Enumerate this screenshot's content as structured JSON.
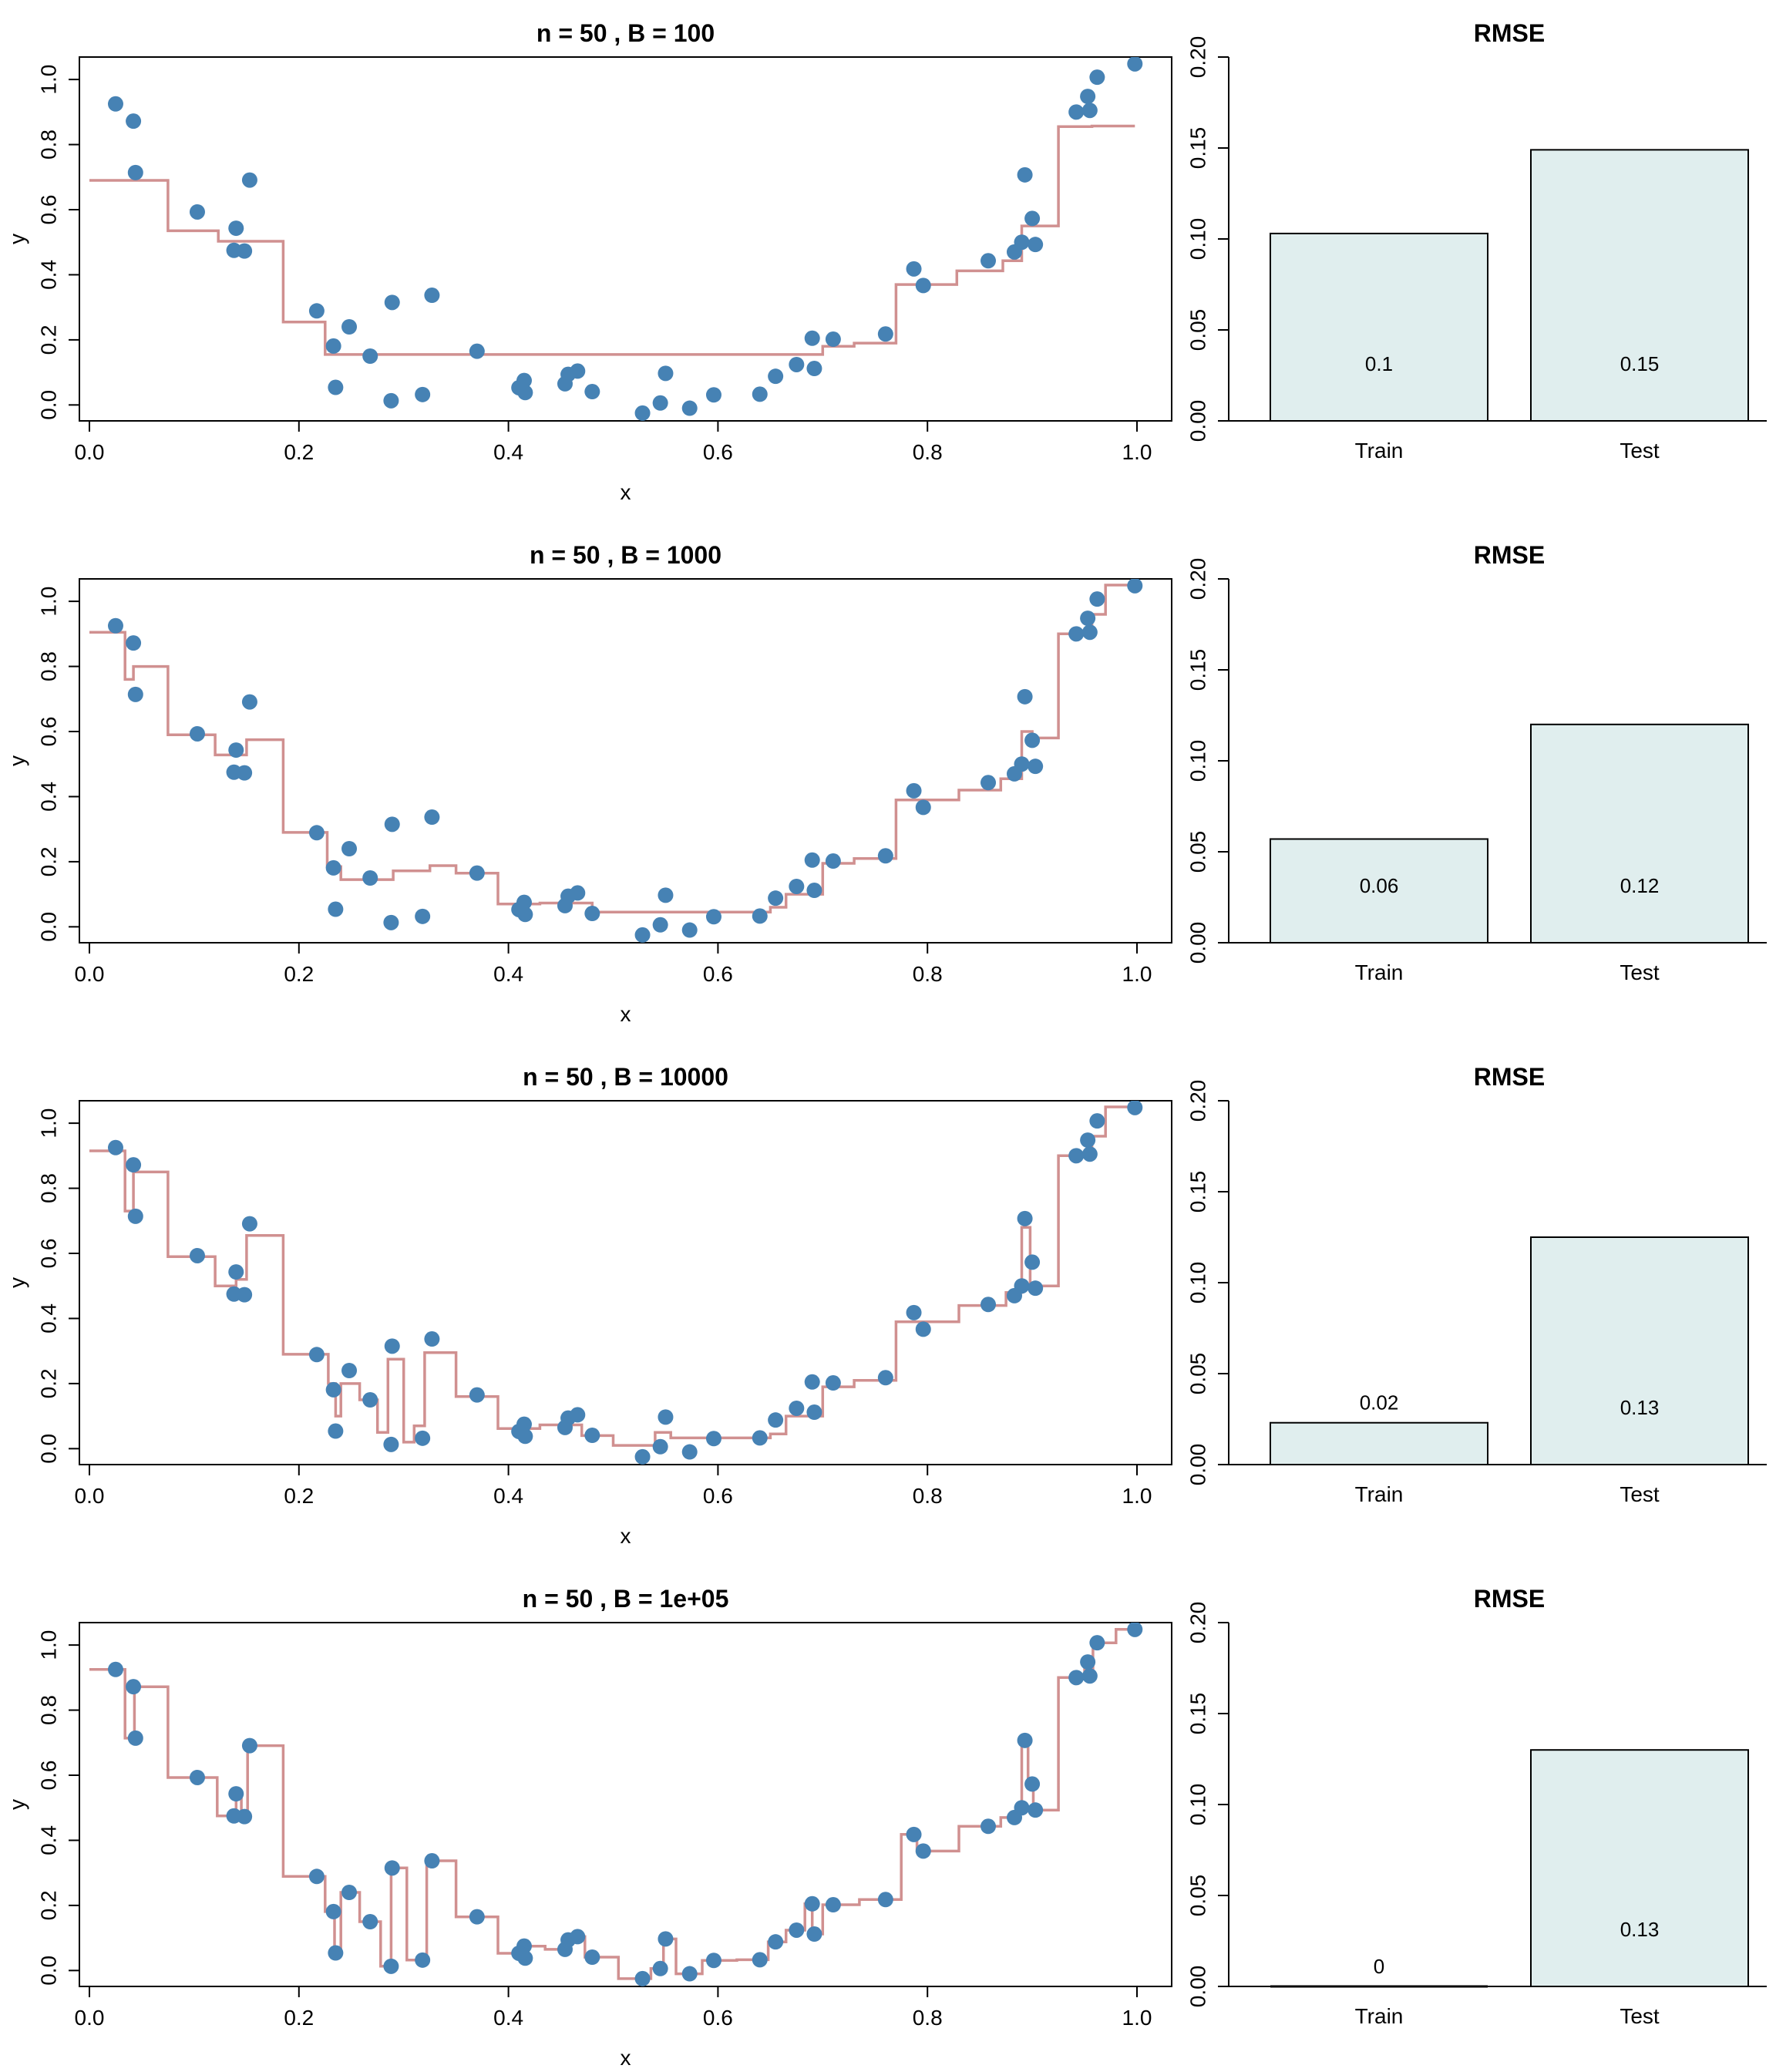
{
  "colors": {
    "points": "#4682B4",
    "fit_line": "#D09090",
    "bar_fill": "#E0EEEE",
    "axis": "#000000"
  },
  "x_data": [
    0.025,
    0.042,
    0.044,
    0.103,
    0.138,
    0.14,
    0.148,
    0.153,
    0.217,
    0.233,
    0.235,
    0.248,
    0.268,
    0.288,
    0.289,
    0.318,
    0.327,
    0.37,
    0.41,
    0.415,
    0.416,
    0.454,
    0.457,
    0.466,
    0.48,
    0.528,
    0.545,
    0.55,
    0.573,
    0.596,
    0.64,
    0.655,
    0.675,
    0.69,
    0.692,
    0.71,
    0.76,
    0.787,
    0.796,
    0.858,
    0.883,
    0.89,
    0.893,
    0.9,
    0.903,
    0.942,
    0.953,
    0.955,
    0.962,
    0.998
  ],
  "y_data": [
    0.925,
    0.872,
    0.714,
    0.593,
    0.475,
    0.543,
    0.473,
    0.691,
    0.289,
    0.181,
    0.054,
    0.24,
    0.15,
    0.013,
    0.315,
    0.032,
    0.337,
    0.165,
    0.053,
    0.075,
    0.038,
    0.065,
    0.094,
    0.104,
    0.041,
    -0.025,
    0.006,
    0.097,
    -0.01,
    0.031,
    0.033,
    0.088,
    0.124,
    0.205,
    0.112,
    0.202,
    0.218,
    0.418,
    0.367,
    0.443,
    0.47,
    0.5,
    0.707,
    0.573,
    0.493,
    0.9,
    0.948,
    0.905,
    1.007,
    1.048
  ],
  "chart_data": [
    {
      "type": "scatter",
      "title": "n = 50 , B = 100",
      "xlabel": "x",
      "ylabel": "y",
      "xlim": [
        0,
        1
      ],
      "ylim": [
        -0.03,
        1.05
      ],
      "x_ticks": [
        "0.0",
        "0.2",
        "0.4",
        "0.6",
        "0.8",
        "1.0"
      ],
      "y_ticks": [
        "0.0",
        "0.2",
        "0.4",
        "0.6",
        "0.8",
        "1.0"
      ],
      "fit_steps": [
        [
          0.0,
          0.69
        ],
        [
          0.075,
          0.535
        ],
        [
          0.123,
          0.503
        ],
        [
          0.185,
          0.255
        ],
        [
          0.225,
          0.155
        ],
        [
          0.7,
          0.18
        ],
        [
          0.73,
          0.19
        ],
        [
          0.77,
          0.37
        ],
        [
          0.828,
          0.412
        ],
        [
          0.872,
          0.443
        ],
        [
          0.89,
          0.55
        ],
        [
          0.925,
          0.855
        ],
        [
          0.957,
          0.857
        ],
        [
          0.998,
          0.857
        ]
      ]
    },
    {
      "type": "bar",
      "title": "RMSE",
      "categories": [
        "Train",
        "Test"
      ],
      "values": [
        0.103,
        0.149
      ],
      "value_labels": [
        "0.1",
        "0.15"
      ],
      "ylim": [
        0,
        0.2
      ],
      "y_ticks": [
        "0.00",
        "0.05",
        "0.10",
        "0.15",
        "0.20"
      ]
    },
    {
      "type": "scatter",
      "title": "n = 50 , B = 1000",
      "xlabel": "x",
      "ylabel": "y",
      "xlim": [
        0,
        1
      ],
      "ylim": [
        -0.03,
        1.05
      ],
      "x_ticks": [
        "0.0",
        "0.2",
        "0.4",
        "0.6",
        "0.8",
        "1.0"
      ],
      "y_ticks": [
        "0.0",
        "0.2",
        "0.4",
        "0.6",
        "0.8",
        "1.0"
      ],
      "fit_steps": [
        [
          0.0,
          0.905
        ],
        [
          0.034,
          0.76
        ],
        [
          0.042,
          0.8
        ],
        [
          0.075,
          0.59
        ],
        [
          0.12,
          0.528
        ],
        [
          0.15,
          0.575
        ],
        [
          0.185,
          0.29
        ],
        [
          0.227,
          0.185
        ],
        [
          0.24,
          0.145
        ],
        [
          0.29,
          0.172
        ],
        [
          0.325,
          0.188
        ],
        [
          0.35,
          0.165
        ],
        [
          0.39,
          0.07
        ],
        [
          0.43,
          0.073
        ],
        [
          0.48,
          0.045
        ],
        [
          0.65,
          0.06
        ],
        [
          0.665,
          0.1
        ],
        [
          0.7,
          0.195
        ],
        [
          0.73,
          0.21
        ],
        [
          0.77,
          0.39
        ],
        [
          0.83,
          0.42
        ],
        [
          0.87,
          0.455
        ],
        [
          0.89,
          0.6
        ],
        [
          0.9,
          0.58
        ],
        [
          0.925,
          0.9
        ],
        [
          0.957,
          0.96
        ],
        [
          0.97,
          1.05
        ],
        [
          0.998,
          1.05
        ]
      ]
    },
    {
      "type": "bar",
      "title": "RMSE",
      "categories": [
        "Train",
        "Test"
      ],
      "values": [
        0.057,
        0.12
      ],
      "value_labels": [
        "0.06",
        "0.12"
      ],
      "ylim": [
        0,
        0.2
      ],
      "y_ticks": [
        "0.00",
        "0.05",
        "0.10",
        "0.15",
        "0.20"
      ]
    },
    {
      "type": "scatter",
      "title": "n = 50 , B = 10000",
      "xlabel": "x",
      "ylabel": "y",
      "xlim": [
        0,
        1
      ],
      "ylim": [
        -0.03,
        1.05
      ],
      "x_ticks": [
        "0.0",
        "0.2",
        "0.4",
        "0.6",
        "0.8",
        "1.0"
      ],
      "y_ticks": [
        "0.0",
        "0.2",
        "0.4",
        "0.6",
        "0.8",
        "1.0"
      ],
      "fit_steps": [
        [
          0.0,
          0.915
        ],
        [
          0.034,
          0.73
        ],
        [
          0.042,
          0.85
        ],
        [
          0.075,
          0.59
        ],
        [
          0.12,
          0.5
        ],
        [
          0.14,
          0.52
        ],
        [
          0.15,
          0.655
        ],
        [
          0.185,
          0.29
        ],
        [
          0.228,
          0.2
        ],
        [
          0.235,
          0.1
        ],
        [
          0.24,
          0.2
        ],
        [
          0.258,
          0.15
        ],
        [
          0.275,
          0.05
        ],
        [
          0.285,
          0.275
        ],
        [
          0.3,
          0.02
        ],
        [
          0.31,
          0.07
        ],
        [
          0.32,
          0.295
        ],
        [
          0.35,
          0.16
        ],
        [
          0.39,
          0.062
        ],
        [
          0.43,
          0.073
        ],
        [
          0.47,
          0.04
        ],
        [
          0.5,
          0.01
        ],
        [
          0.54,
          0.05
        ],
        [
          0.555,
          0.033
        ],
        [
          0.65,
          0.045
        ],
        [
          0.665,
          0.1
        ],
        [
          0.7,
          0.19
        ],
        [
          0.73,
          0.21
        ],
        [
          0.77,
          0.39
        ],
        [
          0.83,
          0.44
        ],
        [
          0.875,
          0.48
        ],
        [
          0.89,
          0.68
        ],
        [
          0.898,
          0.5
        ],
        [
          0.925,
          0.9
        ],
        [
          0.957,
          0.96
        ],
        [
          0.97,
          1.05
        ],
        [
          0.998,
          1.05
        ]
      ]
    },
    {
      "type": "bar",
      "title": "RMSE",
      "categories": [
        "Train",
        "Test"
      ],
      "values": [
        0.023,
        0.125
      ],
      "value_labels": [
        "0.02",
        "0.13"
      ],
      "ylim": [
        0,
        0.2
      ],
      "y_ticks": [
        "0.00",
        "0.05",
        "0.10",
        "0.15",
        "0.20"
      ]
    },
    {
      "type": "scatter",
      "title": "n = 50 , B = 1e+05",
      "xlabel": "x",
      "ylabel": "y",
      "xlim": [
        0,
        1
      ],
      "ylim": [
        -0.03,
        1.05
      ],
      "x_ticks": [
        "0.0",
        "0.2",
        "0.4",
        "0.6",
        "0.8",
        "1.0"
      ],
      "y_ticks": [
        "0.0",
        "0.2",
        "0.4",
        "0.6",
        "0.8",
        "1.0"
      ],
      "fit_steps": [
        [
          0.0,
          0.925
        ],
        [
          0.034,
          0.714
        ],
        [
          0.043,
          0.872
        ],
        [
          0.075,
          0.593
        ],
        [
          0.122,
          0.475
        ],
        [
          0.14,
          0.543
        ],
        [
          0.145,
          0.473
        ],
        [
          0.151,
          0.691
        ],
        [
          0.185,
          0.289
        ],
        [
          0.225,
          0.181
        ],
        [
          0.234,
          0.054
        ],
        [
          0.24,
          0.24
        ],
        [
          0.258,
          0.15
        ],
        [
          0.278,
          0.013
        ],
        [
          0.288,
          0.315
        ],
        [
          0.303,
          0.032
        ],
        [
          0.322,
          0.337
        ],
        [
          0.35,
          0.165
        ],
        [
          0.39,
          0.053
        ],
        [
          0.413,
          0.075
        ],
        [
          0.435,
          0.065
        ],
        [
          0.456,
          0.094
        ],
        [
          0.46,
          0.104
        ],
        [
          0.473,
          0.041
        ],
        [
          0.505,
          -0.025
        ],
        [
          0.536,
          0.006
        ],
        [
          0.548,
          0.097
        ],
        [
          0.56,
          -0.01
        ],
        [
          0.585,
          0.031
        ],
        [
          0.618,
          0.033
        ],
        [
          0.648,
          0.088
        ],
        [
          0.665,
          0.124
        ],
        [
          0.683,
          0.205
        ],
        [
          0.69,
          0.112
        ],
        [
          0.7,
          0.202
        ],
        [
          0.735,
          0.218
        ],
        [
          0.775,
          0.418
        ],
        [
          0.79,
          0.367
        ],
        [
          0.83,
          0.443
        ],
        [
          0.87,
          0.47
        ],
        [
          0.886,
          0.5
        ],
        [
          0.89,
          0.707
        ],
        [
          0.896,
          0.573
        ],
        [
          0.901,
          0.493
        ],
        [
          0.925,
          0.9
        ],
        [
          0.95,
          0.948
        ],
        [
          0.954,
          0.905
        ],
        [
          0.958,
          1.007
        ],
        [
          0.98,
          1.048
        ],
        [
          0.998,
          1.048
        ]
      ]
    },
    {
      "type": "bar",
      "title": "RMSE",
      "categories": [
        "Train",
        "Test"
      ],
      "values": [
        0.0,
        0.13
      ],
      "value_labels": [
        "0",
        "0.13"
      ],
      "ylim": [
        0,
        0.2
      ],
      "y_ticks": [
        "0.00",
        "0.05",
        "0.10",
        "0.15",
        "0.20"
      ]
    }
  ]
}
